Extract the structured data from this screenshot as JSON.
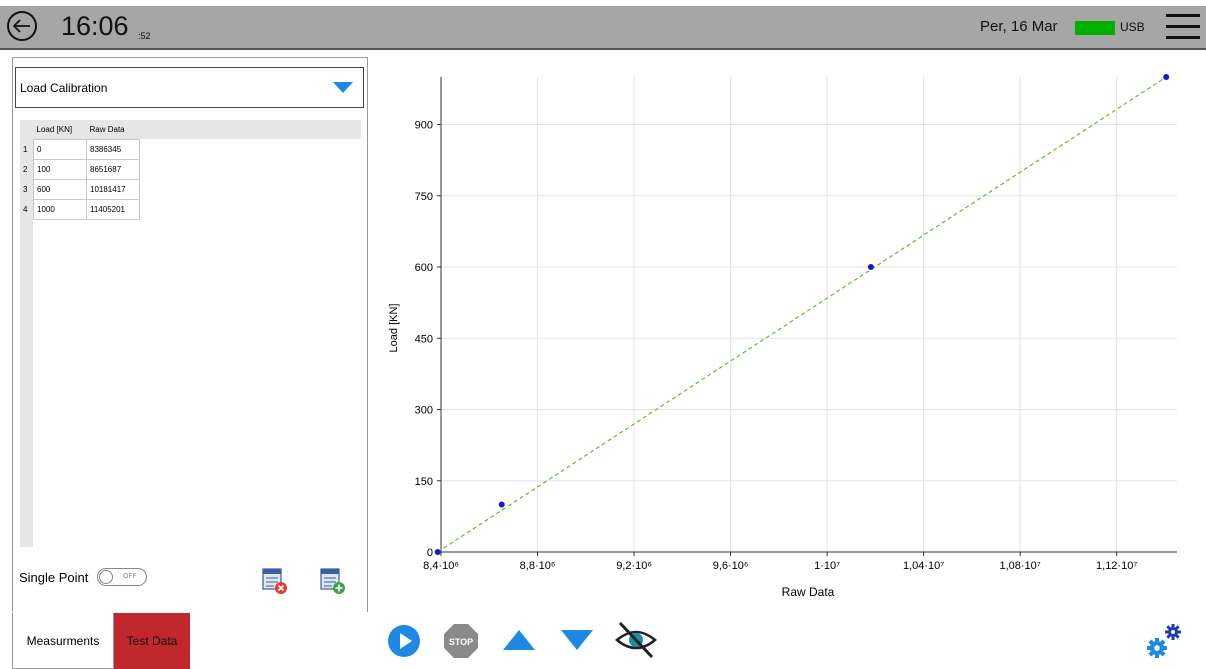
{
  "header": {
    "time": "16:06",
    "seconds": ":52",
    "date": "Per, 16 Mar",
    "usb_label": "USB"
  },
  "panel": {
    "dropdown_value": "Load Calibration",
    "table": {
      "columns": [
        "Load [KN]",
        "Raw Data"
      ],
      "rows": [
        {
          "n": "1",
          "load": "0",
          "raw": "8386345"
        },
        {
          "n": "2",
          "load": "100",
          "raw": "8651687"
        },
        {
          "n": "3",
          "load": "600",
          "raw": "10181417"
        },
        {
          "n": "4",
          "load": "1000",
          "raw": "11405201"
        }
      ]
    },
    "single_point_label": "Single Point",
    "toggle_text": "OFF"
  },
  "tabs": {
    "measurements": "Measurments",
    "test_data": "Test Data"
  },
  "controls": {
    "stop_label": "STOP"
  },
  "colors": {
    "topbar": "#a6a6a6",
    "accent_blue": "#1e88e5",
    "usb_green": "#00b000",
    "tab_red": "#c0282d",
    "fit_line": "#66bb33",
    "points": "#1a1acc"
  },
  "chart_data": {
    "type": "scatter",
    "xlabel": "Raw Data",
    "ylabel": "Load [KN]",
    "xlim": [
      8400000,
      11450000
    ],
    "ylim": [
      0,
      1000
    ],
    "x_ticks": [
      {
        "v": 8400000,
        "label": "8,4·10⁶"
      },
      {
        "v": 8800000,
        "label": "8,8·10⁶"
      },
      {
        "v": 9200000,
        "label": "9,2·10⁶"
      },
      {
        "v": 9600000,
        "label": "9,6·10⁶"
      },
      {
        "v": 10000000,
        "label": "1·10⁷"
      },
      {
        "v": 10400000,
        "label": "1,04·10⁷"
      },
      {
        "v": 10800000,
        "label": "1,08·10⁷"
      },
      {
        "v": 11200000,
        "label": "1,12·10⁷"
      }
    ],
    "y_ticks": [
      {
        "v": 0,
        "label": "0"
      },
      {
        "v": 150,
        "label": "150"
      },
      {
        "v": 300,
        "label": "300"
      },
      {
        "v": 450,
        "label": "450"
      },
      {
        "v": 600,
        "label": "600"
      },
      {
        "v": 750,
        "label": "750"
      },
      {
        "v": 900,
        "label": "900"
      }
    ],
    "points": [
      {
        "x": 8386345,
        "y": 0
      },
      {
        "x": 8651687,
        "y": 100
      },
      {
        "x": 10181417,
        "y": 600
      },
      {
        "x": 11405201,
        "y": 1000
      }
    ],
    "fit_line": [
      [
        8386345,
        0
      ],
      [
        11405201,
        1000
      ]
    ],
    "grid": true
  }
}
